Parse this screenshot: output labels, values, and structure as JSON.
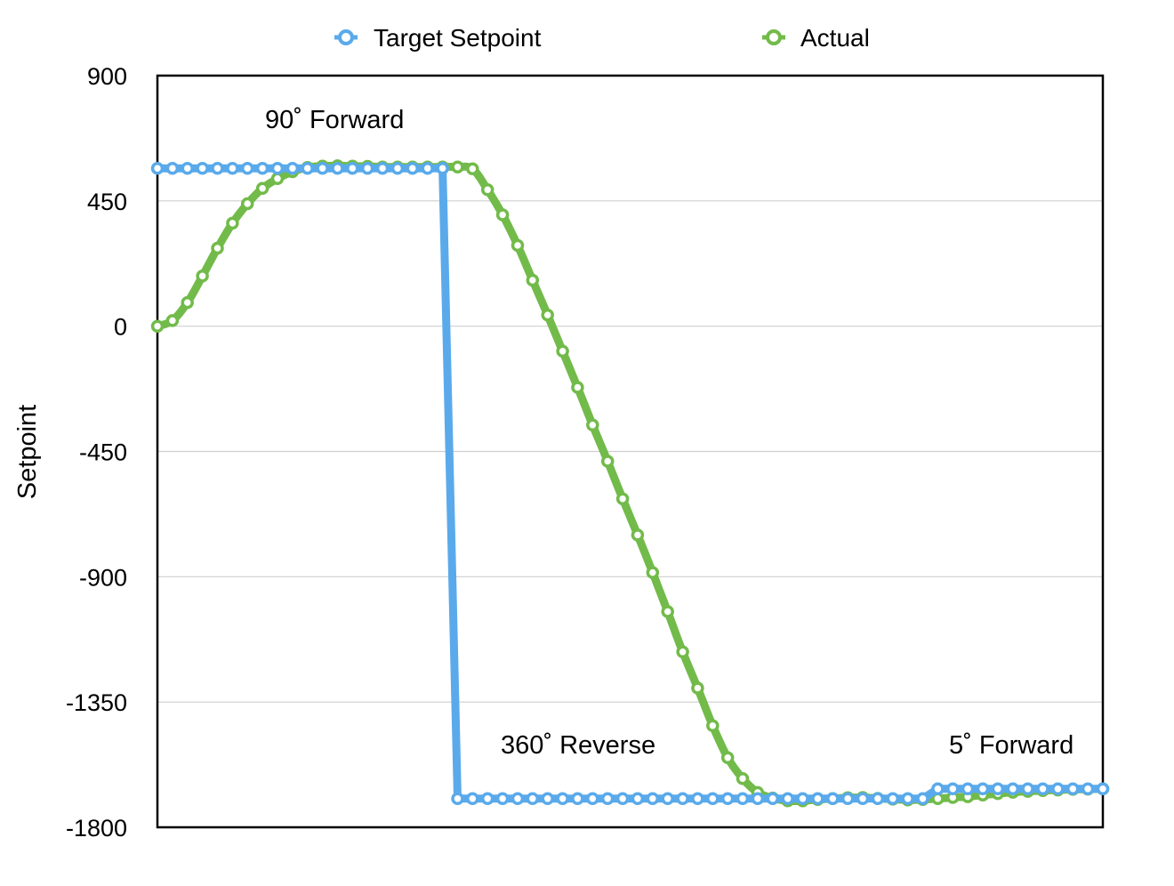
{
  "chart_data": {
    "type": "line",
    "ylabel": "Setpoint",
    "xlabel": "",
    "ylim": [
      -1800,
      900
    ],
    "yticks": [
      "900",
      "450",
      "0",
      "-450",
      "-900",
      "-1350",
      "-1800"
    ],
    "ytick_values": [
      900,
      450,
      0,
      -450,
      -900,
      -1350,
      -1800
    ],
    "grid": true,
    "legend": "top",
    "colors": {
      "target": "#5aaaeb",
      "actual": "#72bb4a"
    },
    "x_count": 64,
    "series": [
      {
        "name": "Target Setpoint",
        "color": "#5aaaeb",
        "values": [
          567,
          567,
          567,
          567,
          567,
          567,
          567,
          567,
          567,
          567,
          567,
          567,
          567,
          567,
          567,
          567,
          567,
          567,
          567,
          567,
          -1697,
          -1697,
          -1697,
          -1697,
          -1697,
          -1697,
          -1697,
          -1697,
          -1697,
          -1697,
          -1697,
          -1697,
          -1697,
          -1697,
          -1697,
          -1697,
          -1697,
          -1697,
          -1697,
          -1697,
          -1697,
          -1697,
          -1697,
          -1697,
          -1697,
          -1697,
          -1697,
          -1697,
          -1697,
          -1697,
          -1697,
          -1697,
          -1662,
          -1662,
          -1662,
          -1662,
          -1662,
          -1662,
          -1662,
          -1662,
          -1662,
          -1662,
          -1662,
          -1662
        ]
      },
      {
        "name": "Actual",
        "color": "#72bb4a",
        "values": [
          0,
          20,
          85,
          180,
          280,
          370,
          440,
          495,
          530,
          555,
          570,
          575,
          576,
          575,
          574,
          572,
          572,
          572,
          572,
          572,
          572,
          565,
          490,
          400,
          290,
          165,
          40,
          -90,
          -220,
          -355,
          -485,
          -620,
          -750,
          -885,
          -1025,
          -1170,
          -1300,
          -1435,
          -1550,
          -1625,
          -1675,
          -1695,
          -1705,
          -1705,
          -1700,
          -1697,
          -1694,
          -1693,
          -1696,
          -1699,
          -1702,
          -1700,
          -1697,
          -1693,
          -1690,
          -1684,
          -1679,
          -1674,
          -1671,
          -1668,
          -1666,
          -1664,
          -1663,
          -1662
        ]
      }
    ],
    "annotations": [
      {
        "text": "90˚ Forward"
      },
      {
        "text": "360˚ Reverse"
      },
      {
        "text": "5˚ Forward"
      }
    ]
  }
}
